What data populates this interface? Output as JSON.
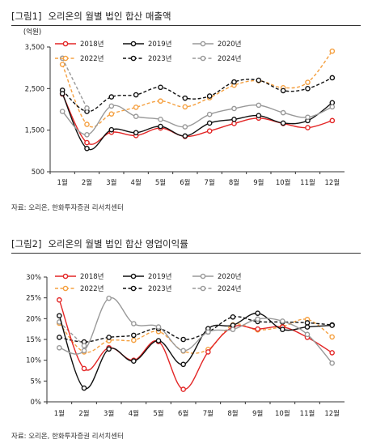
{
  "figures": [
    {
      "num": "[그림1]",
      "title": "오리온의 월별 법인 합산 매출액",
      "source": "자료: 오리온, 한화투자증권 리서치센터"
    },
    {
      "num": "[그림2]",
      "title": "오리온의 월별 법인 합산 영업이익률",
      "source": "자료: 오리온, 한화투자증권 리서치센터"
    }
  ],
  "chart_data": [
    {
      "type": "line",
      "unit_label": "(억원)",
      "categories": [
        "1월",
        "2월",
        "3월",
        "4월",
        "5월",
        "6월",
        "7월",
        "8월",
        "9월",
        "10월",
        "11월",
        "12월"
      ],
      "ylim": [
        500,
        3500
      ],
      "yticks": [
        500,
        1500,
        2500,
        3500
      ],
      "ytick_labels": [
        "500",
        "1,500",
        "2,500",
        "3,500"
      ],
      "legend_position": "top",
      "grid": false,
      "series": [
        {
          "name": "2018년",
          "color": "#e32626",
          "dash": false,
          "marker": "filled",
          "values": [
            2370,
            1200,
            1450,
            1370,
            1550,
            1350,
            1480,
            1660,
            1790,
            1660,
            1560,
            1730
          ]
        },
        {
          "name": "2019년",
          "color": "#111111",
          "dash": false,
          "marker": "filled",
          "values": [
            2380,
            1060,
            1510,
            1440,
            1590,
            1360,
            1670,
            1760,
            1850,
            1670,
            1730,
            2160
          ]
        },
        {
          "name": "2020년",
          "color": "#999999",
          "dash": false,
          "marker": "filled",
          "values": [
            1950,
            1390,
            2080,
            1830,
            1760,
            1580,
            1880,
            2020,
            2100,
            1920,
            1810,
            2060
          ]
        },
        {
          "name": "2022년",
          "color": "#f5a040",
          "dash": true,
          "marker": "open",
          "values": [
            3080,
            1640,
            1890,
            2050,
            2200,
            2060,
            2280,
            2580,
            2690,
            2520,
            2650,
            3400
          ]
        },
        {
          "name": "2023년",
          "color": "#111111",
          "dash": true,
          "marker": "open",
          "values": [
            2460,
            1950,
            2300,
            2350,
            2530,
            2270,
            2320,
            2660,
            2700,
            2450,
            2500,
            2760
          ]
        },
        {
          "name": "2024년",
          "color": "#999999",
          "dash": true,
          "marker": "open",
          "values": [
            3230,
            2030,
            null,
            null,
            null,
            null,
            null,
            null,
            null,
            null,
            null,
            null
          ]
        }
      ]
    },
    {
      "type": "line",
      "unit_label": "",
      "categories": [
        "1월",
        "2월",
        "3월",
        "4월",
        "5월",
        "6월",
        "7월",
        "8월",
        "9월",
        "10월",
        "11월",
        "12월"
      ],
      "ylim": [
        0,
        30
      ],
      "yticks": [
        0,
        5,
        10,
        15,
        20,
        25,
        30
      ],
      "ytick_labels": [
        "0%",
        "5%",
        "10%",
        "15%",
        "20%",
        "25%",
        "30%"
      ],
      "legend_position": "top",
      "grid": false,
      "series": [
        {
          "name": "2018년",
          "color": "#e32626",
          "dash": false,
          "marker": "filled",
          "values": [
            24.5,
            8.0,
            13.0,
            10.0,
            14.5,
            3.0,
            12.0,
            18.0,
            17.5,
            18.0,
            15.5,
            11.8
          ]
        },
        {
          "name": "2019년",
          "color": "#111111",
          "dash": false,
          "marker": "filled",
          "values": [
            20.7,
            3.3,
            12.7,
            9.8,
            14.7,
            9.0,
            17.6,
            18.4,
            21.3,
            17.4,
            18.0,
            18.4
          ]
        },
        {
          "name": "2020년",
          "color": "#999999",
          "dash": false,
          "marker": "filled",
          "values": [
            13.0,
            12.3,
            24.9,
            18.8,
            18.0,
            12.3,
            16.8,
            17.4,
            19.9,
            19.4,
            16.2,
            9.3
          ]
        },
        {
          "name": "2022년",
          "color": "#f5a040",
          "dash": true,
          "marker": "open",
          "values": [
            18.9,
            12.0,
            14.7,
            14.8,
            16.9,
            12.2,
            12.6,
            18.5,
            17.3,
            18.1,
            19.8,
            15.6
          ]
        },
        {
          "name": "2023년",
          "color": "#111111",
          "dash": true,
          "marker": "open",
          "values": [
            15.5,
            14.4,
            15.5,
            16.0,
            17.6,
            15.0,
            16.8,
            20.4,
            19.3,
            19.2,
            19.0,
            18.5
          ]
        },
        {
          "name": "2024년",
          "color": "#999999",
          "dash": true,
          "marker": "open",
          "values": [
            19.2,
            13.5,
            null,
            null,
            null,
            null,
            null,
            null,
            null,
            null,
            null,
            null
          ]
        }
      ]
    }
  ]
}
